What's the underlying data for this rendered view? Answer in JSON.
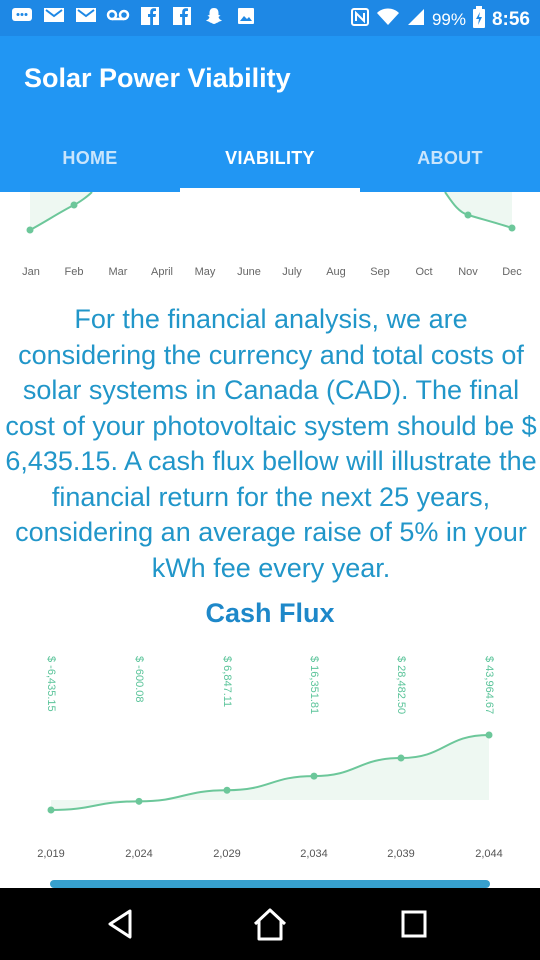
{
  "status_bar": {
    "left_icons": [
      "chat-icon",
      "gmail-icon",
      "gmail-icon",
      "voicemail-icon",
      "facebook-icon",
      "facebook-icon",
      "snapchat-icon",
      "image-icon"
    ],
    "battery": "99%",
    "time": "8:56"
  },
  "app": {
    "title": "Solar Power Viability"
  },
  "tabs": [
    {
      "label": "HOME"
    },
    {
      "label": "VIABILITY"
    },
    {
      "label": "ABOUT"
    }
  ],
  "month_chart": {
    "months": [
      "Jan",
      "Feb",
      "Mar",
      "April",
      "May",
      "June",
      "July",
      "Aug",
      "Sep",
      "Oct",
      "Nov",
      "Dec"
    ]
  },
  "financial_text": "For the financial analysis, we are considering the currency and total costs of solar systems in Canada (CAD). The final cost of your photovoltaic system should be $ 6,435.15. A cash flux bellow will illustrate the financial return for the next 25 years, considering an average raise of 5% in your kWh fee every year.",
  "cash_flux": {
    "title": "Cash Flux"
  },
  "chart_data": {
    "type": "area",
    "x": [
      "2,019",
      "2,024",
      "2,029",
      "2,034",
      "2,039",
      "2,044"
    ],
    "values": [
      -6435.15,
      -600.08,
      6847.11,
      16351.81,
      28482.5,
      43964.67
    ],
    "data_labels": [
      "$ -6,435.15",
      "$ -600.08",
      "$ 6,847.11",
      "$ 16,351.81",
      "$ 28,482.50",
      "$ 43,964.67"
    ],
    "colors": {
      "line": "#6cc79a",
      "fill": "#eef8f2",
      "labels": "#5bc49a"
    }
  }
}
